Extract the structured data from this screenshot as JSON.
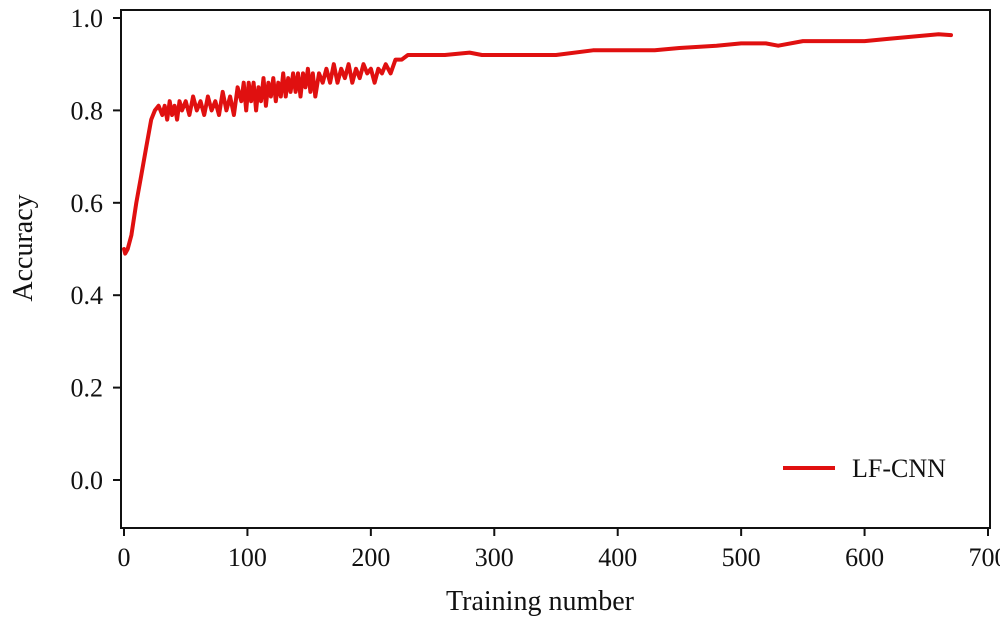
{
  "chart_data": {
    "type": "line",
    "title": "",
    "xlabel": "Training number",
    "ylabel": "Accuracy",
    "xlim": [
      0,
      700
    ],
    "ylim": [
      -0.1,
      1.0
    ],
    "x_ticks": [
      0,
      100,
      200,
      300,
      400,
      500,
      600,
      700
    ],
    "x_tick_labels": [
      "0",
      "100",
      "200",
      "300",
      "400",
      "500",
      "600",
      "700"
    ],
    "y_ticks": [
      0.0,
      0.2,
      0.4,
      0.6,
      0.8,
      1.0
    ],
    "y_tick_labels": [
      "0.0",
      "0.2",
      "0.4",
      "0.6",
      "0.8",
      "1.0"
    ],
    "grid": false,
    "legend_position": "bottom-right",
    "series": [
      {
        "name": "LF-CNN",
        "color": "#e01010",
        "x": [
          0,
          1,
          3,
          6,
          10,
          14,
          18,
          22,
          25,
          28,
          31,
          33,
          35,
          37,
          39,
          41,
          43,
          45,
          47,
          50,
          53,
          56,
          59,
          62,
          65,
          68,
          71,
          74,
          77,
          80,
          83,
          86,
          89,
          92,
          95,
          97,
          99,
          101,
          103,
          105,
          107,
          109,
          111,
          113,
          115,
          117,
          119,
          121,
          123,
          125,
          127,
          129,
          131,
          133,
          135,
          137,
          139,
          141,
          143,
          145,
          147,
          149,
          151,
          153,
          155,
          158,
          161,
          164,
          167,
          170,
          173,
          176,
          179,
          182,
          185,
          188,
          191,
          194,
          197,
          200,
          203,
          206,
          209,
          212,
          216,
          220,
          225,
          230,
          240,
          260,
          280,
          290,
          300,
          320,
          350,
          380,
          400,
          430,
          450,
          480,
          500,
          520,
          530,
          550,
          580,
          600,
          620,
          640,
          660,
          670
        ],
        "y": [
          0.5,
          0.49,
          0.5,
          0.53,
          0.6,
          0.66,
          0.72,
          0.78,
          0.8,
          0.81,
          0.79,
          0.81,
          0.78,
          0.82,
          0.79,
          0.81,
          0.78,
          0.82,
          0.8,
          0.82,
          0.79,
          0.83,
          0.8,
          0.82,
          0.79,
          0.83,
          0.8,
          0.82,
          0.79,
          0.84,
          0.8,
          0.83,
          0.79,
          0.85,
          0.82,
          0.86,
          0.8,
          0.86,
          0.82,
          0.86,
          0.8,
          0.85,
          0.82,
          0.87,
          0.81,
          0.86,
          0.83,
          0.87,
          0.82,
          0.86,
          0.83,
          0.88,
          0.83,
          0.87,
          0.84,
          0.88,
          0.84,
          0.88,
          0.83,
          0.88,
          0.85,
          0.89,
          0.84,
          0.88,
          0.83,
          0.88,
          0.86,
          0.89,
          0.86,
          0.9,
          0.86,
          0.89,
          0.87,
          0.9,
          0.86,
          0.89,
          0.87,
          0.9,
          0.88,
          0.89,
          0.86,
          0.89,
          0.88,
          0.9,
          0.88,
          0.91,
          0.91,
          0.92,
          0.92,
          0.92,
          0.925,
          0.92,
          0.92,
          0.92,
          0.92,
          0.93,
          0.93,
          0.93,
          0.935,
          0.94,
          0.945,
          0.945,
          0.94,
          0.95,
          0.95,
          0.95,
          0.955,
          0.96,
          0.965,
          0.963
        ]
      }
    ]
  }
}
